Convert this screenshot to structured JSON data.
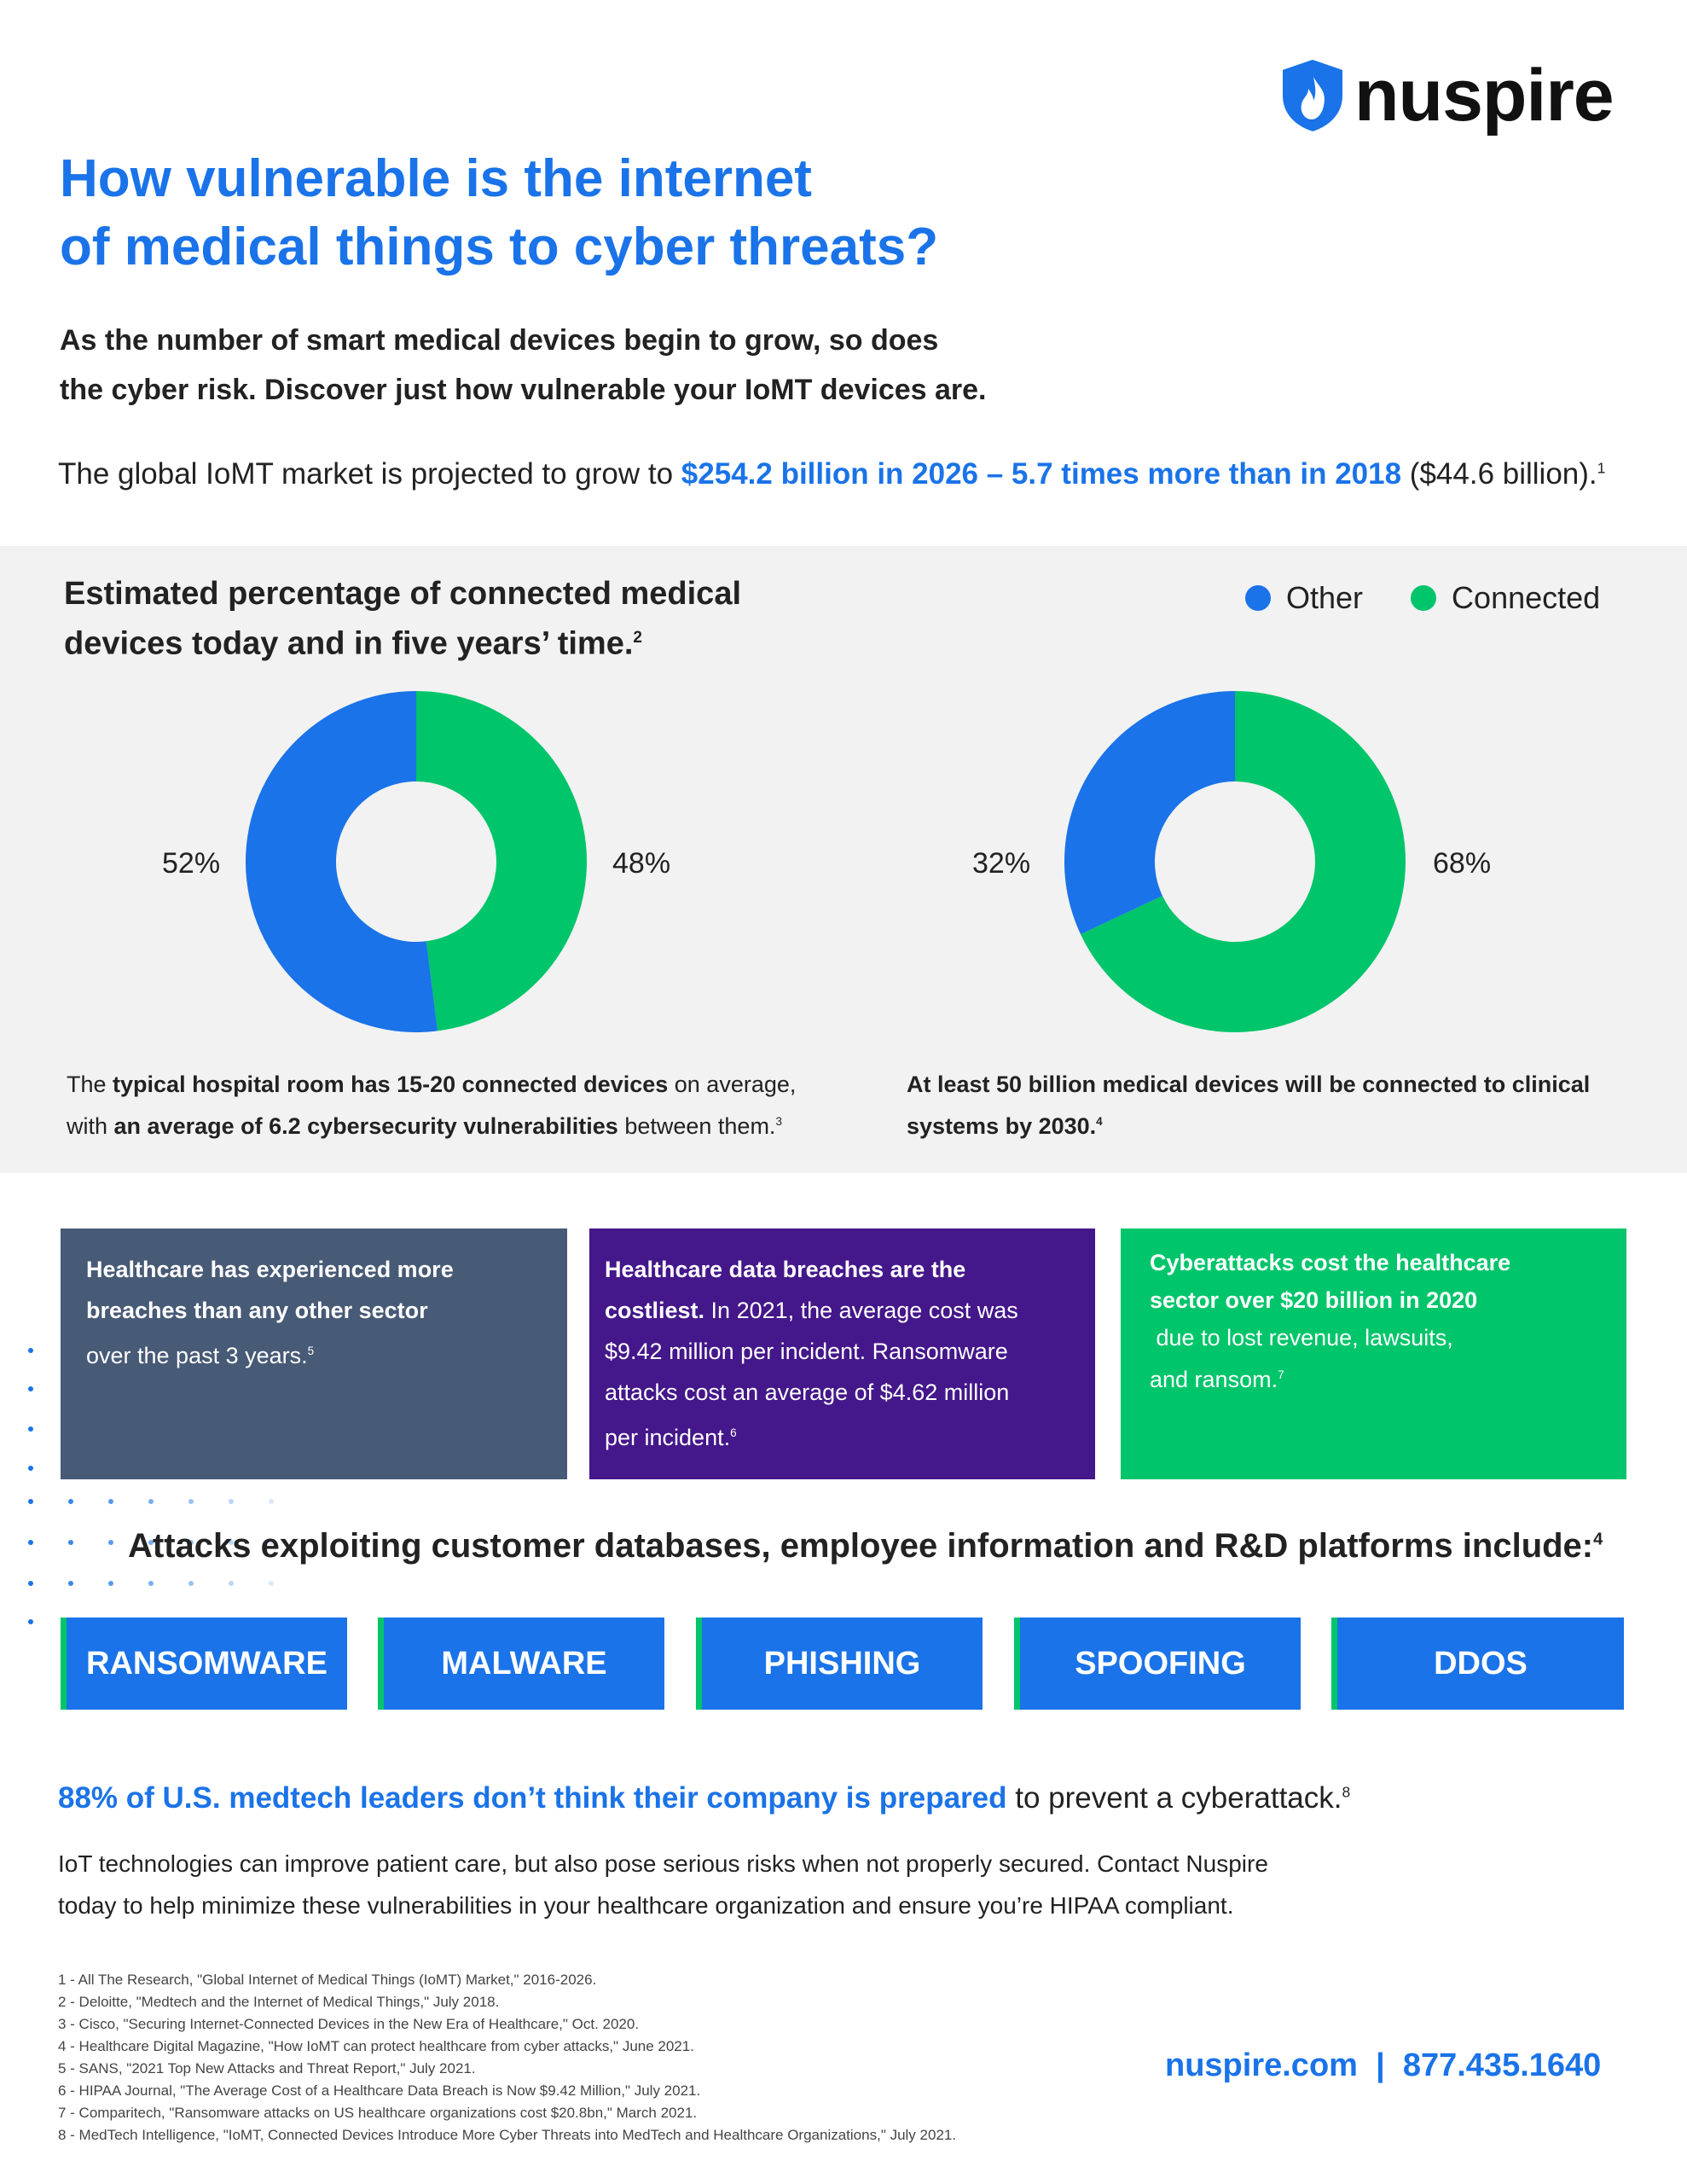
{
  "brand": {
    "name": "nuspire",
    "logo_icon": "shield-flame-icon",
    "accent": "#1a73e8",
    "green": "#00c56a"
  },
  "headline": {
    "line1": "How vulnerable is the internet",
    "line2": "of medical things to cyber threats?"
  },
  "subhead": {
    "line1": "As the number of smart medical devices begin to grow, so does",
    "line2": "the cyber risk. Discover just how vulnerable your IoMT devices are."
  },
  "market": {
    "prefix": "The global IoMT market is projected to grow to ",
    "highlight": "$254.2 billion in 2026 – 5.7 times more than in 2018",
    "suffix": " ($44.6 billion).",
    "ref": "1"
  },
  "chart_section": {
    "title_line1": "Estimated percentage of connected medical",
    "title_line2": "devices today and in five years’ time.",
    "title_ref": "2",
    "legend": [
      {
        "label": "Other",
        "color": "#1a73e8"
      },
      {
        "label": "Connected",
        "color": "#00c56a"
      }
    ],
    "left_labels": {
      "other": "52%",
      "connected": "48%"
    },
    "right_labels": {
      "other": "32%",
      "connected": "68%"
    },
    "note_left": {
      "p1": "The ",
      "b1": "typical hospital room has 15-20 connected devices",
      "p2": " on average,",
      "p3": "with ",
      "b2": "an average of 6.2 cybersecurity vulnerabilities",
      "p4": " between them.",
      "ref": "3"
    },
    "note_right": {
      "line1": "At least 50 billion medical devices will be connected to clinical",
      "line2": "systems by 2030.",
      "ref": "4"
    }
  },
  "chart_data": [
    {
      "type": "pie",
      "variant": "donut",
      "categories": [
        "Other",
        "Connected"
      ],
      "values": [
        52,
        48
      ],
      "colors": [
        "#1a73e8",
        "#00c56a"
      ]
    },
    {
      "type": "pie",
      "variant": "donut",
      "categories": [
        "Other",
        "Connected"
      ],
      "values": [
        32,
        68
      ],
      "colors": [
        "#1a73e8",
        "#00c56a"
      ]
    }
  ],
  "boxes": {
    "box1": {
      "b1": "Healthcare has experienced more",
      "b2": "breaches than any other sector",
      "p1": "over the past 3 years.",
      "ref": "5",
      "color": "#475a76"
    },
    "box2": {
      "b1": "Healthcare data breaches are the",
      "b2": "costliest.",
      "p1": " In 2021, the average cost was",
      "p2": "$9.42 million per incident. Ransomware",
      "p3": "attacks cost an average of $4.62 million",
      "p4": "per incident.",
      "ref": "6",
      "color": "#44178a"
    },
    "box3": {
      "b1": "Cyberattacks cost the healthcare",
      "b2": "sector over $20 billion in 2020",
      "p1": "due to lost revenue, lawsuits,",
      "p2": "and ransom.",
      "ref": "7",
      "color": "#00c56a"
    }
  },
  "attacks": {
    "title": "Attacks exploiting customer databases, employee information and R&D platforms include:",
    "ref": "4",
    "items": [
      "RANSOMWARE",
      "MALWARE",
      "PHISHING",
      "SPOOFING",
      "DDOS"
    ]
  },
  "stat": {
    "highlight": "88% of U.S. medtech leaders don’t think their company is prepared",
    "rest": " to prevent a cyberattack.",
    "ref": "8"
  },
  "cta": {
    "line1": "IoT technologies can improve patient care, but also pose serious risks when not properly secured. Contact Nuspire",
    "line2": "today to help minimize these vulnerabilities in your healthcare organization and ensure you’re HIPAA compliant."
  },
  "footnotes": [
    "1 - All The Research, \"Global Internet of Medical Things (IoMT) Market,\" 2016-2026.",
    "2 - Deloitte, \"Medtech and the Internet of Medical Things,\" July 2018.",
    "3 - Cisco, \"Securing Internet-Connected Devices in the New Era of Healthcare,\" Oct. 2020.",
    "4 - Healthcare Digital Magazine, \"How IoMT can protect healthcare from cyber attacks,\" June 2021.",
    "5 - SANS, \"2021 Top New Attacks and Threat Report,\" July 2021.",
    "6 - HIPAA Journal, \"The Average Cost of a Healthcare Data Breach is Now $9.42 Million,\" July 2021.",
    "7 - Comparitech, \"Ransomware attacks on US healthcare organizations cost $20.8bn,\" March 2021.",
    "8 - MedTech Intelligence, \"IoMT, Connected Devices Introduce More Cyber Threats into MedTech and Healthcare Organizations,\" July 2021."
  ],
  "contact": {
    "website": "nuspire.com",
    "separator": "|",
    "phone": "877.435.1640"
  }
}
